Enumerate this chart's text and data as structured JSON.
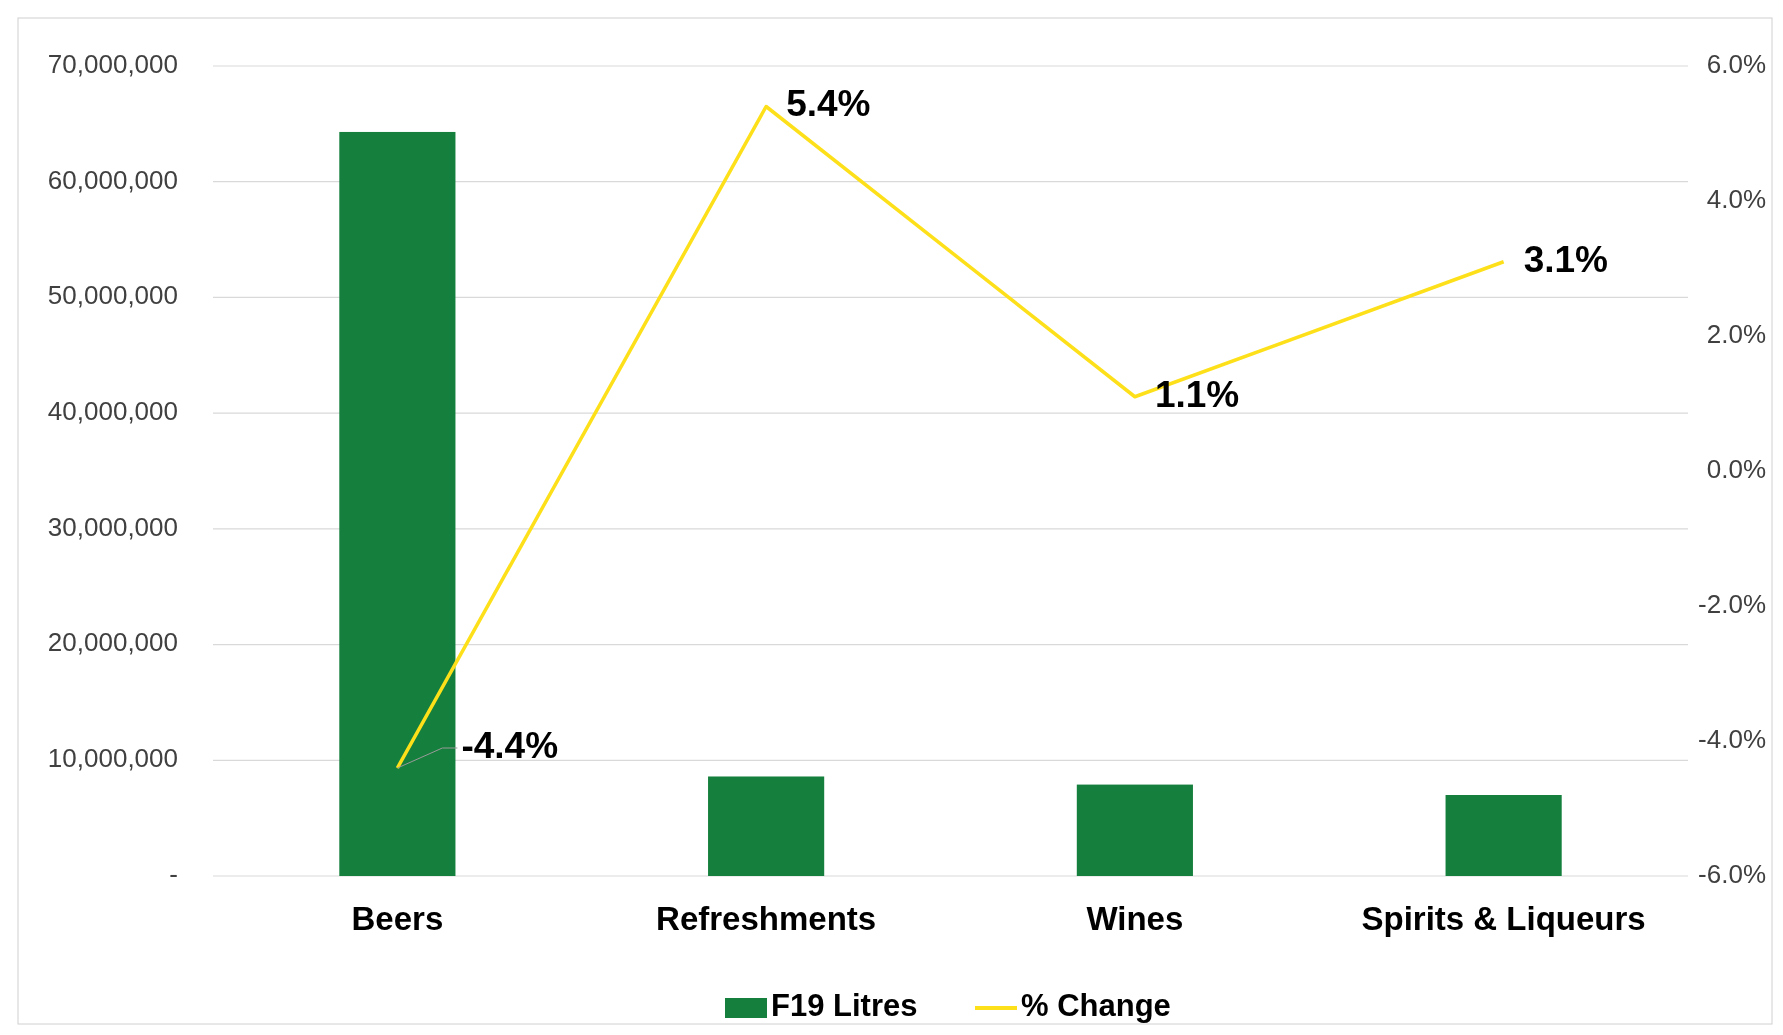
{
  "chart_data": {
    "type": "bar",
    "categories": [
      "Beers",
      "Refreshments",
      "Wines",
      "Spirits & Liqueurs"
    ],
    "series": [
      {
        "name": "F19 Litres",
        "color": "#15803d",
        "values": [
          64300000,
          8600000,
          7900000,
          7000000
        ]
      },
      {
        "name": "% Change",
        "type": "line",
        "axis": "y2",
        "color": "#fde01a",
        "values": [
          -4.4,
          5.4,
          1.1,
          3.1
        ],
        "value_labels": [
          "-4.4%",
          "5.4%",
          "1.1%",
          "3.1%"
        ]
      }
    ],
    "ylim": [
      0,
      70000000
    ],
    "yticks": [
      {
        "value": 0,
        "label": "-"
      },
      {
        "value": 10000000,
        "label": "10,000,000"
      },
      {
        "value": 20000000,
        "label": "20,000,000"
      },
      {
        "value": 30000000,
        "label": "30,000,000"
      },
      {
        "value": 40000000,
        "label": "40,000,000"
      },
      {
        "value": 50000000,
        "label": "50,000,000"
      },
      {
        "value": 60000000,
        "label": "60,000,000"
      },
      {
        "value": 70000000,
        "label": "70,000,000"
      }
    ],
    "y2lim": [
      -6,
      6
    ],
    "y2ticks": [
      {
        "value": -6,
        "label": "-6.0%"
      },
      {
        "value": -4,
        "label": "-4.0%"
      },
      {
        "value": -2,
        "label": "-2.0%"
      },
      {
        "value": 0,
        "label": "0.0%"
      },
      {
        "value": 2,
        "label": "2.0%"
      },
      {
        "value": 4,
        "label": "4.0%"
      },
      {
        "value": 6,
        "label": "6.0%"
      }
    ],
    "grid": "y",
    "legend": "bottom",
    "marker": "none",
    "line_style": "solid"
  }
}
